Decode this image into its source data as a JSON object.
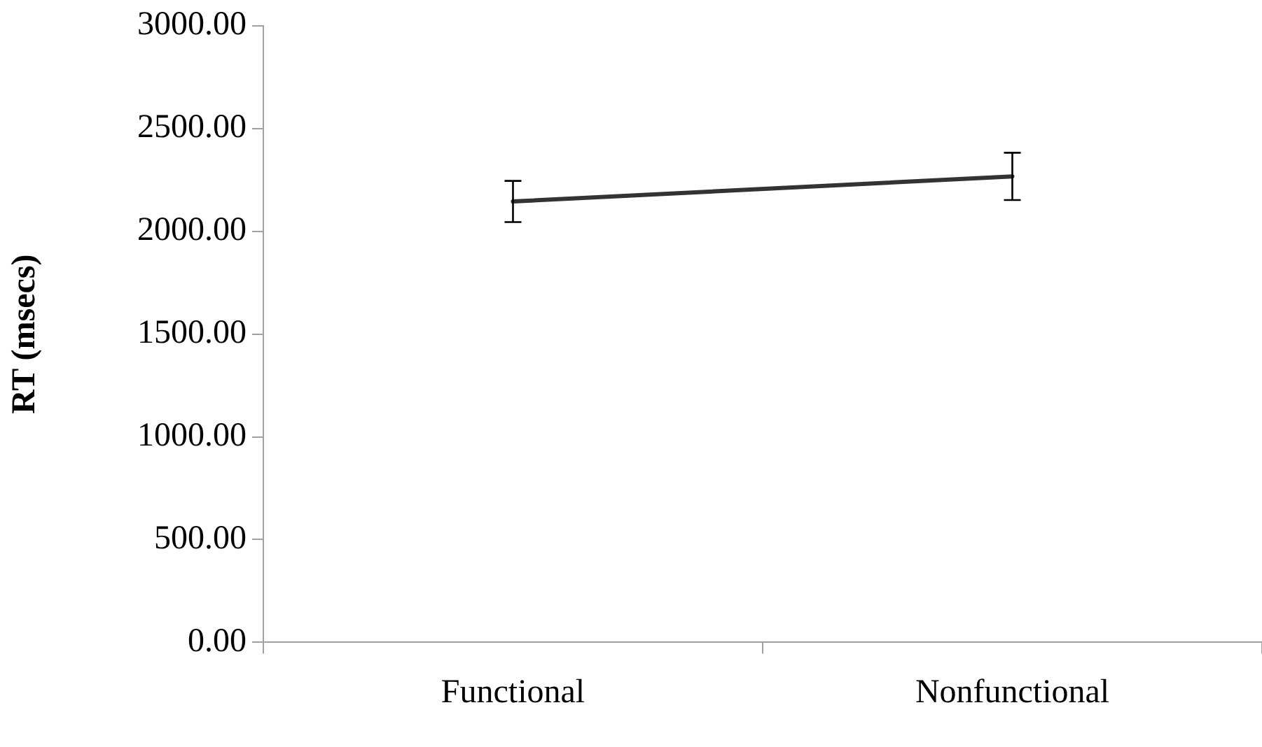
{
  "chart_data": {
    "type": "line",
    "ylabel": "RT (msecs)",
    "categories": [
      "Functional",
      "Nonfunctional"
    ],
    "series": [
      {
        "color": "#333333",
        "values": [
          2145,
          2267
        ],
        "errors": [
          100,
          115
        ]
      }
    ],
    "ylim": [
      0,
      3000
    ],
    "yticks": [
      {
        "value": 0,
        "label": "0.00"
      },
      {
        "value": 500,
        "label": "500.00"
      },
      {
        "value": 1000,
        "label": "1000.00"
      },
      {
        "value": 1500,
        "label": "1500.00"
      },
      {
        "value": 2000,
        "label": "2000.00"
      },
      {
        "value": 2500,
        "label": "2500.00"
      },
      {
        "value": 3000,
        "label": "3000.00"
      }
    ],
    "grid": false,
    "legend": false,
    "marker": "none",
    "line_style": "solid"
  }
}
